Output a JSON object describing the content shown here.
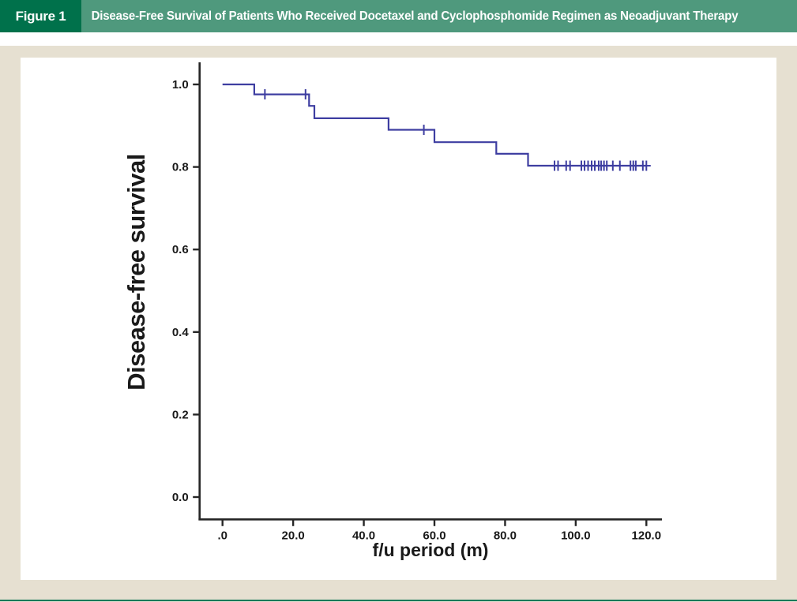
{
  "figure_header": {
    "label": "Figure 1",
    "title": "Disease-Free Survival of Patients Who Received Docetaxel and Cyclophosphomide Regimen as Neoadjuvant Therapy"
  },
  "colors": {
    "header_label_bg": "#00714b",
    "header_bar_bg": "#4f997d",
    "header_text": "#ffffff",
    "page_bg": "#e6e0d1",
    "panel_bg": "#ffffff",
    "axis": "#262626",
    "tick_text": "#1a1a1a",
    "curve": "#3e3ea1",
    "bottom_rule": "#15795a"
  },
  "chart_data": {
    "type": "line",
    "subtype": "kaplan-meier-step",
    "title": "",
    "xlabel": "f/u period (m)",
    "ylabel": "Disease-free survival",
    "xlim": [
      0,
      120
    ],
    "ylim": [
      0,
      1
    ],
    "grid": false,
    "legend": false,
    "x_ticks": [
      {
        "value": 0,
        "label": ".0"
      },
      {
        "value": 20,
        "label": "20.0"
      },
      {
        "value": 40,
        "label": "40.0"
      },
      {
        "value": 60,
        "label": "60.0"
      },
      {
        "value": 80,
        "label": "80.0"
      },
      {
        "value": 100,
        "label": "100.0"
      },
      {
        "value": 120,
        "label": "120.0"
      }
    ],
    "y_ticks": [
      {
        "value": 0.0,
        "label": "0.0"
      },
      {
        "value": 0.2,
        "label": "0.2"
      },
      {
        "value": 0.4,
        "label": "0.4"
      },
      {
        "value": 0.6,
        "label": "0.6"
      },
      {
        "value": 0.8,
        "label": "0.8"
      },
      {
        "value": 1.0,
        "label": "1.0"
      }
    ],
    "series": [
      {
        "name": "Disease-free survival",
        "start": {
          "t": 0,
          "s": 1.0
        },
        "steps": [
          {
            "t": 9,
            "s": 0.976
          },
          {
            "t": 24.5,
            "s": 0.948
          },
          {
            "t": 26,
            "s": 0.918
          },
          {
            "t": 47,
            "s": 0.89
          },
          {
            "t": 60,
            "s": 0.86
          },
          {
            "t": 77.5,
            "s": 0.832
          },
          {
            "t": 86.5,
            "s": 0.803
          }
        ],
        "end_t": 120,
        "censors": [
          {
            "t": 12,
            "s": 0.976
          },
          {
            "t": 23.5,
            "s": 0.976
          },
          {
            "t": 57,
            "s": 0.89
          },
          {
            "t": 94,
            "s": 0.803
          },
          {
            "t": 95,
            "s": 0.803
          },
          {
            "t": 97.3,
            "s": 0.803
          },
          {
            "t": 98.4,
            "s": 0.803
          },
          {
            "t": 101.6,
            "s": 0.803
          },
          {
            "t": 102.5,
            "s": 0.803
          },
          {
            "t": 103.5,
            "s": 0.803
          },
          {
            "t": 104.5,
            "s": 0.803
          },
          {
            "t": 105.4,
            "s": 0.803
          },
          {
            "t": 106.5,
            "s": 0.803
          },
          {
            "t": 107.2,
            "s": 0.803
          },
          {
            "t": 108,
            "s": 0.803
          },
          {
            "t": 108.8,
            "s": 0.803
          },
          {
            "t": 110.5,
            "s": 0.803
          },
          {
            "t": 112.5,
            "s": 0.803
          },
          {
            "t": 115.5,
            "s": 0.803
          },
          {
            "t": 116.3,
            "s": 0.803
          },
          {
            "t": 117,
            "s": 0.803
          },
          {
            "t": 119,
            "s": 0.803
          },
          {
            "t": 120,
            "s": 0.803
          }
        ]
      }
    ]
  }
}
